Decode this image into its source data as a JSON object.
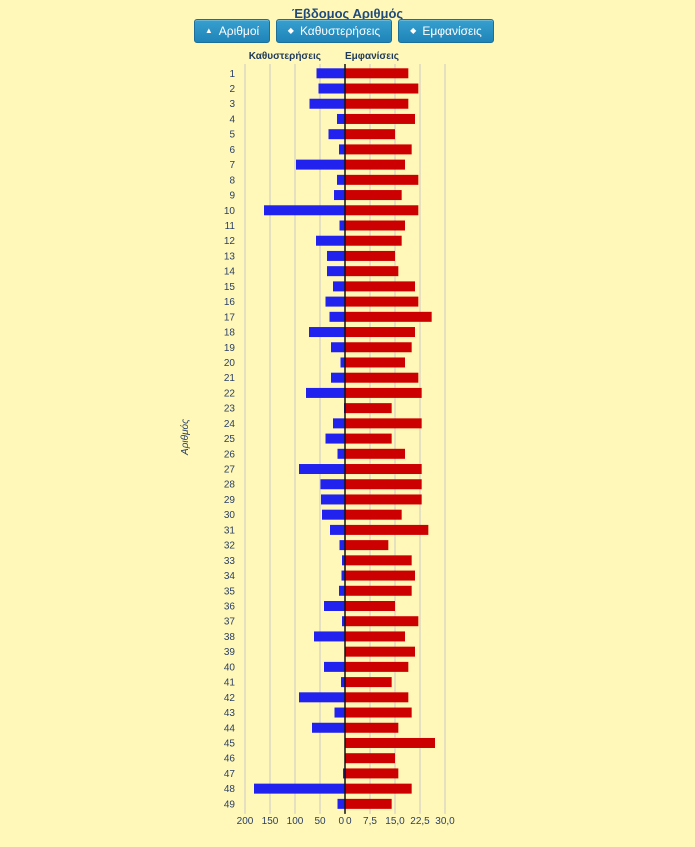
{
  "title": "Έβδομος Αριθμός",
  "buttons": [
    {
      "label": "Αριθμοί",
      "icon": "caret-up-icon"
    },
    {
      "label": "Καθυστερήσεις",
      "icon": "sort-icon"
    },
    {
      "label": "Εμφανίσεις",
      "icon": "sort-icon"
    }
  ],
  "colors": {
    "delays": "#2222ee",
    "appearances": "#cc0000",
    "background": "#fff8b8"
  },
  "chart_data": {
    "type": "bar",
    "orientation": "horizontal",
    "ylabel": "Αριθμός",
    "categories": [
      "1",
      "2",
      "3",
      "4",
      "5",
      "6",
      "7",
      "8",
      "9",
      "10",
      "11",
      "12",
      "13",
      "14",
      "15",
      "16",
      "17",
      "18",
      "19",
      "20",
      "21",
      "22",
      "23",
      "24",
      "25",
      "26",
      "27",
      "28",
      "29",
      "30",
      "31",
      "32",
      "33",
      "34",
      "35",
      "36",
      "37",
      "38",
      "39",
      "40",
      "41",
      "42",
      "43",
      "44",
      "45",
      "46",
      "47",
      "48",
      "49"
    ],
    "left": {
      "name": "Καθυστερήσεις",
      "ticks": [
        "200",
        "150",
        "100",
        "50",
        "0"
      ],
      "xlim": [
        200,
        0
      ],
      "values": [
        57,
        53,
        71,
        16,
        33,
        12,
        98,
        16,
        22,
        162,
        11,
        58,
        36,
        36,
        24,
        39,
        31,
        72,
        28,
        9,
        28,
        78,
        2,
        24,
        39,
        15,
        92,
        49,
        48,
        46,
        30,
        11,
        6,
        7,
        12,
        42,
        6,
        62,
        1,
        42,
        8,
        92,
        21,
        66,
        1,
        1,
        4,
        182,
        15
      ]
    },
    "right": {
      "name": "Εμφανίσεις",
      "ticks": [
        "0",
        "7,5",
        "15,0",
        "22,5",
        "30,0"
      ],
      "xlim": [
        0,
        30
      ],
      "values": [
        19,
        22,
        19,
        21,
        15,
        20,
        18,
        22,
        17,
        22,
        18,
        17,
        15,
        16,
        21,
        22,
        26,
        21,
        20,
        18,
        22,
        23,
        14,
        23,
        14,
        18,
        23,
        23,
        23,
        17,
        25,
        13,
        20,
        21,
        20,
        15,
        22,
        18,
        21,
        19,
        14,
        19,
        20,
        16,
        27,
        15,
        16,
        20,
        14
      ]
    }
  }
}
